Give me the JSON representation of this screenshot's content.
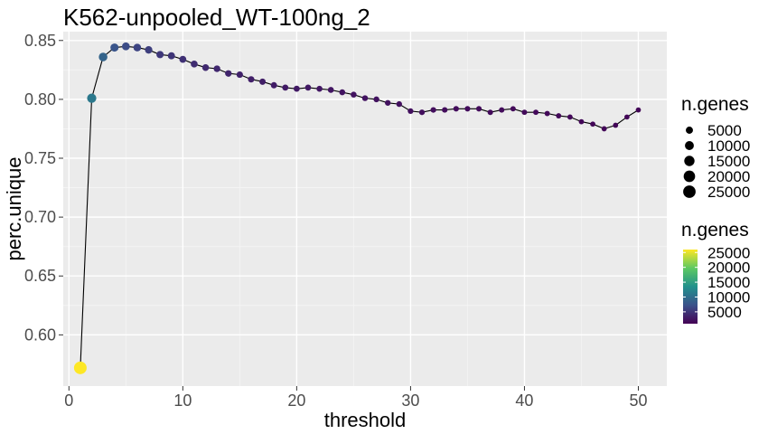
{
  "chart_data": {
    "type": "scatter",
    "title": "K562-unpooled_WT-100ng_2",
    "xlabel": "threshold",
    "ylabel": "perc.unique",
    "xlim": [
      -0.5,
      52.5
    ],
    "ylim": [
      0.5565,
      0.8575
    ],
    "x_ticks": [
      0,
      10,
      20,
      30,
      40,
      50
    ],
    "x_tick_labels": [
      "0",
      "10",
      "20",
      "30",
      "40",
      "50"
    ],
    "y_ticks": [
      0.6,
      0.65,
      0.7,
      0.75,
      0.8,
      0.85
    ],
    "y_tick_labels": [
      "0.60",
      "0.65",
      "0.70",
      "0.75",
      "0.80",
      "0.85"
    ],
    "grid": true,
    "legend_position": "right",
    "size_legend": {
      "title": "n.genes",
      "labels": [
        "5000",
        "10000",
        "15000",
        "20000",
        "25000"
      ],
      "values": [
        5000,
        10000,
        15000,
        20000,
        25000
      ]
    },
    "color_legend": {
      "title": "n.genes",
      "labels": [
        "25000",
        "20000",
        "15000",
        "10000",
        "5000"
      ],
      "values": [
        25000,
        20000,
        15000,
        10000,
        5000
      ],
      "range": [
        1000,
        26000
      ]
    },
    "series": [
      {
        "x": [
          1,
          2,
          3,
          4,
          5,
          6,
          7,
          8,
          9,
          10,
          11,
          12,
          13,
          14,
          15,
          16,
          17,
          18,
          19,
          20,
          21,
          22,
          23,
          24,
          25,
          26,
          27,
          28,
          29,
          30,
          31,
          32,
          33,
          34,
          35,
          36,
          37,
          38,
          39,
          40,
          41,
          42,
          43,
          44,
          45,
          46,
          47,
          48,
          49,
          50
        ],
        "y": [
          0.572,
          0.801,
          0.836,
          0.844,
          0.845,
          0.844,
          0.842,
          0.838,
          0.837,
          0.834,
          0.83,
          0.827,
          0.826,
          0.822,
          0.821,
          0.817,
          0.815,
          0.812,
          0.81,
          0.809,
          0.81,
          0.809,
          0.808,
          0.806,
          0.804,
          0.801,
          0.8,
          0.797,
          0.796,
          0.79,
          0.789,
          0.791,
          0.791,
          0.792,
          0.792,
          0.792,
          0.789,
          0.791,
          0.792,
          0.789,
          0.789,
          0.788,
          0.786,
          0.785,
          0.781,
          0.779,
          0.775,
          0.778,
          0.785,
          0.791
        ],
        "n_genes": [
          26000,
          11000,
          9000,
          7500,
          6800,
          6200,
          5700,
          5200,
          4900,
          4600,
          4300,
          4100,
          3900,
          3700,
          3500,
          3350,
          3200,
          3050,
          2950,
          2850,
          2750,
          2650,
          2570,
          2500,
          2420,
          2350,
          2280,
          2220,
          2160,
          2100,
          2050,
          2000,
          1950,
          1900,
          1860,
          1820,
          1780,
          1740,
          1700,
          1670,
          1640,
          1610,
          1580,
          1550,
          1520,
          1490,
          1460,
          1430,
          1400,
          1370
        ]
      }
    ]
  }
}
